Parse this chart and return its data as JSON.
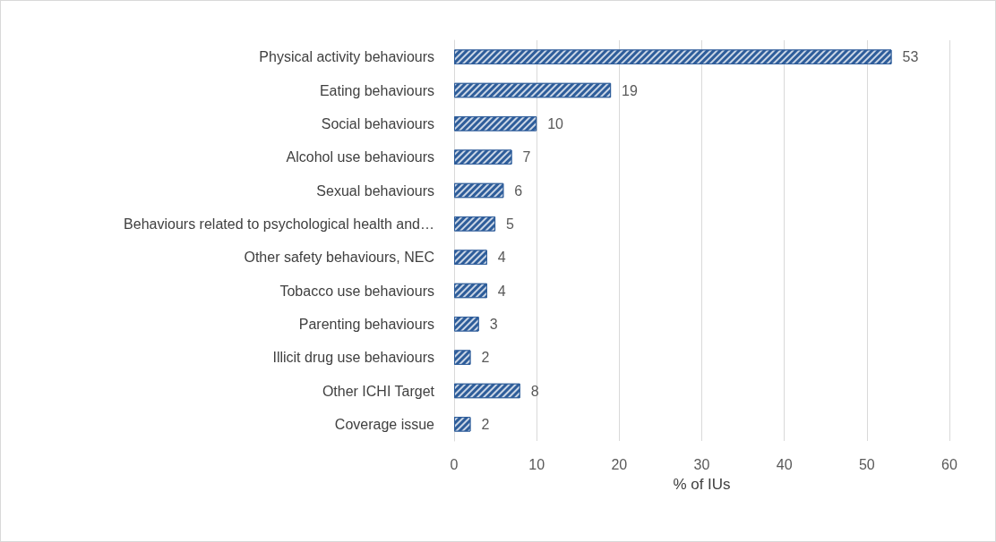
{
  "chart_data": {
    "type": "bar",
    "orientation": "horizontal",
    "xlabel": "% of IUs",
    "categories": [
      "Physical activity behaviours",
      "Eating behaviours",
      "Social behaviours",
      "Alcohol use behaviours",
      "Sexual behaviours",
      "Behaviours related to psychological health and…",
      "Other safety behaviours, NEC",
      "Tobacco use behaviours",
      "Parenting behaviours",
      "Illicit drug use behaviours",
      "Other ICHI Target",
      "Coverage issue"
    ],
    "values": [
      53,
      19,
      10,
      7,
      6,
      5,
      4,
      4,
      3,
      2,
      8,
      2
    ],
    "color": "#2e5d9a",
    "xlim": [
      0,
      60
    ],
    "xticks": [
      0,
      10,
      20,
      30,
      40,
      50,
      60
    ],
    "grid": "x",
    "data_labels": true
  }
}
